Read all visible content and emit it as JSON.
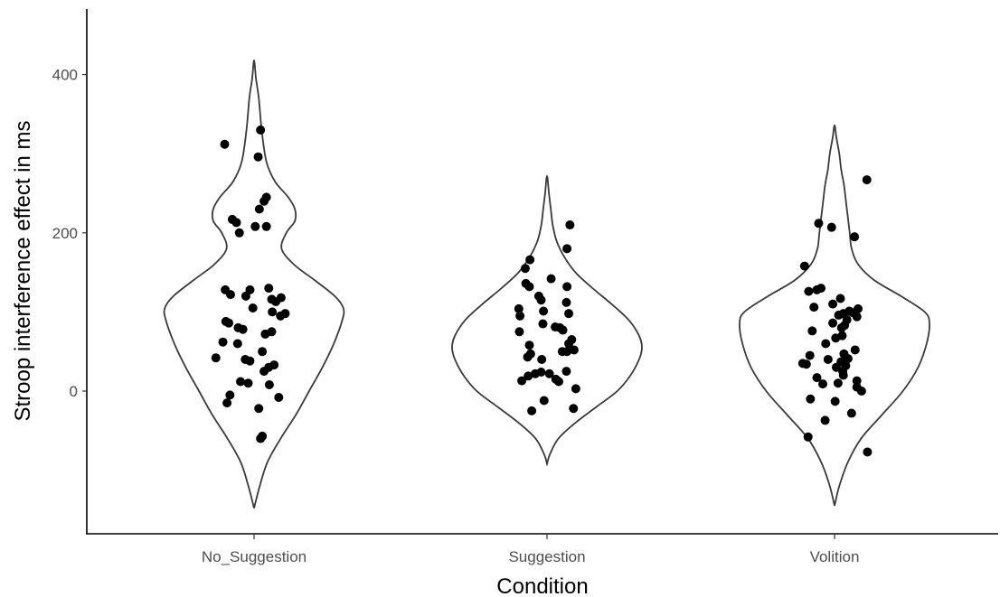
{
  "chart_data": {
    "type": "violin",
    "title": "",
    "xlabel": "Condition",
    "ylabel": "Stroop interference effect in ms",
    "ylim": [
      -180,
      480
    ],
    "yticks": [
      0,
      200,
      400
    ],
    "categories": [
      "No_Suggestion",
      "Suggestion",
      "Volition"
    ],
    "grid": false,
    "series": [
      {
        "category": "No_Suggestion",
        "violin": {
          "min": -148,
          "max": 418,
          "profile": [
            [
              -148,
              0.0
            ],
            [
              -120,
              0.06
            ],
            [
              -90,
              0.14
            ],
            [
              -60,
              0.28
            ],
            [
              -30,
              0.44
            ],
            [
              0,
              0.58
            ],
            [
              30,
              0.72
            ],
            [
              60,
              0.84
            ],
            [
              90,
              0.93
            ],
            [
              105,
              0.94
            ],
            [
              120,
              0.85
            ],
            [
              140,
              0.64
            ],
            [
              160,
              0.42
            ],
            [
              180,
              0.29
            ],
            [
              200,
              0.34
            ],
            [
              215,
              0.43
            ],
            [
              230,
              0.43
            ],
            [
              245,
              0.36
            ],
            [
              265,
              0.22
            ],
            [
              290,
              0.13
            ],
            [
              330,
              0.08
            ],
            [
              370,
              0.05
            ],
            [
              395,
              0.02
            ],
            [
              418,
              0.0
            ]
          ]
        },
        "points": [
          [
            312,
            -0.5
          ],
          [
            330,
            0.11
          ],
          [
            296,
            0.07
          ],
          [
            245,
            0.21
          ],
          [
            240,
            0.17
          ],
          [
            230,
            0.09
          ],
          [
            217,
            -0.37
          ],
          [
            213,
            -0.3
          ],
          [
            208,
            0.02
          ],
          [
            208,
            0.21
          ],
          [
            200,
            -0.25
          ],
          [
            130,
            0.25
          ],
          [
            128,
            -0.07
          ],
          [
            128,
            -0.49
          ],
          [
            122,
            -0.4
          ],
          [
            120,
            -0.14
          ],
          [
            118,
            0.46
          ],
          [
            116,
            0.3
          ],
          [
            113,
            0.37
          ],
          [
            105,
            -0.02
          ],
          [
            100,
            0.31
          ],
          [
            98,
            0.53
          ],
          [
            95,
            0.45
          ],
          [
            88,
            -0.48
          ],
          [
            86,
            -0.43
          ],
          [
            80,
            -0.27
          ],
          [
            78,
            -0.19
          ],
          [
            75,
            0.3
          ],
          [
            72,
            0.19
          ],
          [
            62,
            -0.53
          ],
          [
            60,
            -0.28
          ],
          [
            50,
            0.14
          ],
          [
            42,
            -0.65
          ],
          [
            40,
            -0.15
          ],
          [
            38,
            -0.07
          ],
          [
            33,
            0.34
          ],
          [
            30,
            0.25
          ],
          [
            25,
            0.17
          ],
          [
            12,
            -0.23
          ],
          [
            10,
            -0.1
          ],
          [
            8,
            0.26
          ],
          [
            -5,
            -0.41
          ],
          [
            -8,
            0.42
          ],
          [
            -15,
            -0.46
          ],
          [
            -22,
            0.08
          ],
          [
            -57,
            0.14
          ],
          [
            -60,
            0.11
          ]
        ]
      },
      {
        "category": "Suggestion",
        "violin": {
          "min": -92,
          "max": 272,
          "profile": [
            [
              -92,
              0.0
            ],
            [
              -80,
              0.03
            ],
            [
              -60,
              0.12
            ],
            [
              -40,
              0.3
            ],
            [
              -20,
              0.52
            ],
            [
              0,
              0.74
            ],
            [
              20,
              0.88
            ],
            [
              40,
              0.97
            ],
            [
              55,
              1.0
            ],
            [
              70,
              0.97
            ],
            [
              90,
              0.86
            ],
            [
              110,
              0.68
            ],
            [
              130,
              0.48
            ],
            [
              150,
              0.3
            ],
            [
              170,
              0.18
            ],
            [
              190,
              0.1
            ],
            [
              210,
              0.06
            ],
            [
              230,
              0.04
            ],
            [
              250,
              0.02
            ],
            [
              272,
              0.0
            ]
          ]
        },
        "points": [
          [
            210,
            0.39
          ],
          [
            180,
            0.34
          ],
          [
            166,
            -0.29
          ],
          [
            155,
            -0.37
          ],
          [
            142,
            0.07
          ],
          [
            136,
            -0.36
          ],
          [
            132,
            -0.3
          ],
          [
            132,
            0.34
          ],
          [
            120,
            -0.14
          ],
          [
            115,
            -0.1
          ],
          [
            112,
            0.33
          ],
          [
            104,
            -0.48
          ],
          [
            101,
            -0.06
          ],
          [
            98,
            0.37
          ],
          [
            95,
            -0.46
          ],
          [
            85,
            -0.07
          ],
          [
            81,
            0.14
          ],
          [
            80,
            0.22
          ],
          [
            77,
            0.27
          ],
          [
            75,
            -0.47
          ],
          [
            65,
            0.42
          ],
          [
            60,
            0.37
          ],
          [
            58,
            -0.3
          ],
          [
            52,
            0.46
          ],
          [
            50,
            0.26
          ],
          [
            50,
            0.34
          ],
          [
            47,
            -0.28
          ],
          [
            43,
            -0.33
          ],
          [
            40,
            -0.09
          ],
          [
            25,
            0.33
          ],
          [
            24,
            -0.1
          ],
          [
            22,
            -0.2
          ],
          [
            22,
            0.04
          ],
          [
            19,
            -0.32
          ],
          [
            15,
            0.15
          ],
          [
            13,
            -0.43
          ],
          [
            12,
            0.2
          ],
          [
            3,
            0.49
          ],
          [
            -12,
            -0.05
          ],
          [
            -22,
            0.45
          ],
          [
            -25,
            -0.26
          ]
        ]
      },
      {
        "category": "Volition",
        "violin": {
          "min": -145,
          "max": 336,
          "profile": [
            [
              -145,
              0.0
            ],
            [
              -120,
              0.05
            ],
            [
              -90,
              0.14
            ],
            [
              -60,
              0.28
            ],
            [
              -30,
              0.5
            ],
            [
              0,
              0.72
            ],
            [
              30,
              0.88
            ],
            [
              60,
              0.97
            ],
            [
              85,
              1.0
            ],
            [
              100,
              0.95
            ],
            [
              120,
              0.7
            ],
            [
              140,
              0.42
            ],
            [
              160,
              0.25
            ],
            [
              180,
              0.18
            ],
            [
              200,
              0.16
            ],
            [
              220,
              0.14
            ],
            [
              240,
              0.12
            ],
            [
              260,
              0.1
            ],
            [
              280,
              0.07
            ],
            [
              300,
              0.05
            ],
            [
              320,
              0.02
            ],
            [
              336,
              0.0
            ]
          ]
        },
        "points": [
          [
            267,
            0.55
          ],
          [
            212,
            -0.27
          ],
          [
            207,
            -0.05
          ],
          [
            195,
            0.34
          ],
          [
            158,
            -0.51
          ],
          [
            130,
            -0.23
          ],
          [
            128,
            -0.3
          ],
          [
            126,
            -0.44
          ],
          [
            117,
            0.1
          ],
          [
            110,
            -0.03
          ],
          [
            106,
            -0.35
          ],
          [
            104,
            0.4
          ],
          [
            101,
            0.25
          ],
          [
            99,
            0.31
          ],
          [
            98,
            0.15
          ],
          [
            96,
            0.07
          ],
          [
            94,
            0.38
          ],
          [
            90,
            0.21
          ],
          [
            86,
            -0.03
          ],
          [
            83,
            0.17
          ],
          [
            80,
            0.12
          ],
          [
            76,
            -0.38
          ],
          [
            70,
            0.13
          ],
          [
            67,
            0.02
          ],
          [
            60,
            -0.15
          ],
          [
            52,
            0.35
          ],
          [
            47,
            0.16
          ],
          [
            45,
            -0.42
          ],
          [
            41,
            0.23
          ],
          [
            40,
            -0.11
          ],
          [
            37,
            0.11
          ],
          [
            35,
            -0.54
          ],
          [
            34,
            -0.48
          ],
          [
            32,
            0.19
          ],
          [
            30,
            0.03
          ],
          [
            25,
            0.14
          ],
          [
            20,
            0.15
          ],
          [
            17,
            -0.3
          ],
          [
            13,
            0.38
          ],
          [
            10,
            0.06
          ],
          [
            9,
            -0.2
          ],
          [
            5,
            0.38
          ],
          [
            0,
            0.46
          ],
          [
            -10,
            -0.41
          ],
          [
            -13,
            0.01
          ],
          [
            -28,
            0.29
          ],
          [
            -37,
            -0.16
          ],
          [
            -58,
            -0.45
          ],
          [
            -77,
            0.56
          ]
        ]
      }
    ]
  }
}
